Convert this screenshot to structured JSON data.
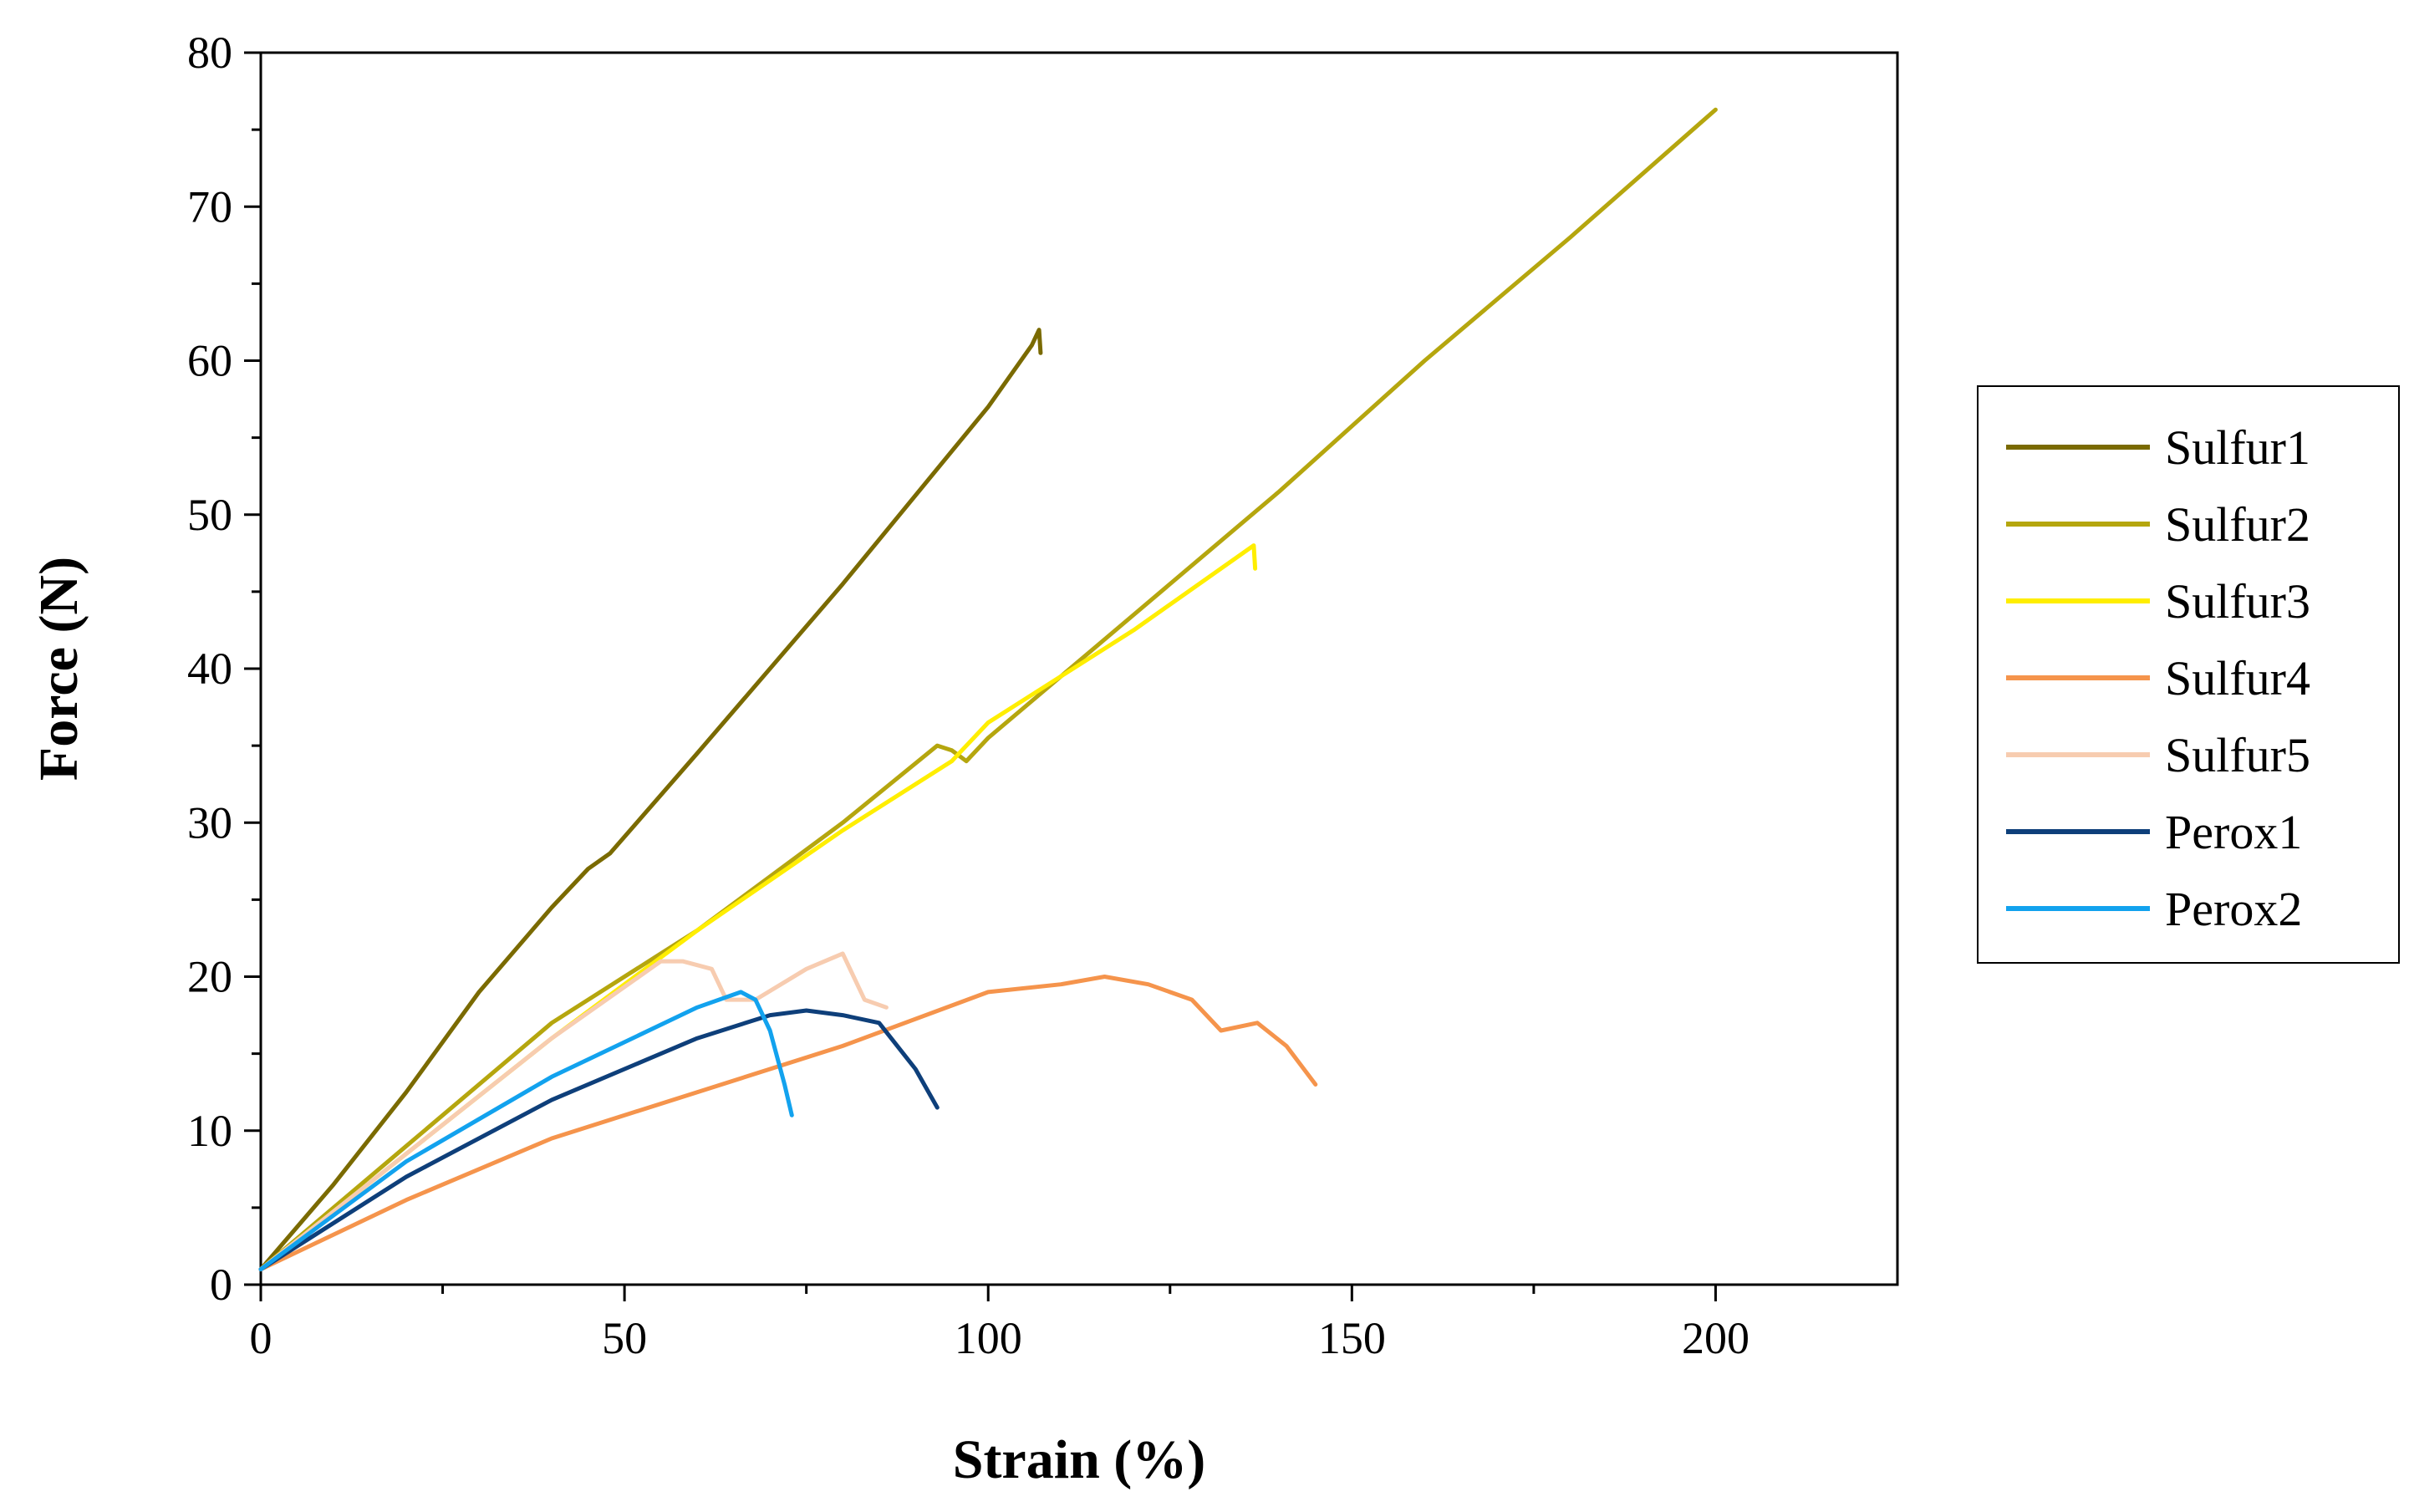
{
  "chart_data": {
    "type": "line",
    "title": "",
    "xlabel": "Strain (%)",
    "ylabel": "Force (N)",
    "xlim": [
      0,
      225
    ],
    "ylim": [
      0,
      80
    ],
    "xticks": [
      0,
      50,
      100,
      150,
      200
    ],
    "yticks": [
      0,
      10,
      20,
      30,
      40,
      50,
      60,
      70,
      80
    ],
    "legend_position": "right",
    "series": [
      {
        "name": "Sulfur1",
        "color": "#7a6a00",
        "x": [
          0,
          10,
          20,
          30,
          40,
          45,
          48,
          60,
          80,
          100,
          106,
          107,
          107.2
        ],
        "y": [
          1,
          6.5,
          12.5,
          19,
          24.5,
          27,
          28,
          34.5,
          45.5,
          57,
          61,
          62,
          60.5
        ]
      },
      {
        "name": "Sulfur2",
        "color": "#b5a60e",
        "x": [
          0,
          20,
          40,
          60,
          80,
          93,
          95,
          97,
          100,
          120,
          140,
          160,
          180,
          200
        ],
        "y": [
          1,
          9,
          17,
          23,
          30,
          35,
          34.7,
          34,
          35.5,
          43.5,
          51.5,
          60,
          68,
          76.3
        ]
      },
      {
        "name": "Sulfur3",
        "color": "#ffee00",
        "x": [
          0,
          20,
          40,
          60,
          80,
          95,
          100,
          120,
          135,
          136.5,
          136.7
        ],
        "y": [
          1,
          8.5,
          16,
          23,
          29.5,
          34,
          36.5,
          42.5,
          47.5,
          48,
          46.5
        ]
      },
      {
        "name": "Sulfur4",
        "color": "#f5944c",
        "x": [
          0,
          20,
          40,
          60,
          80,
          100,
          110,
          116,
          122,
          128,
          132,
          137,
          141,
          145
        ],
        "y": [
          1,
          5.5,
          9.5,
          12.5,
          15.5,
          19,
          19.5,
          20,
          19.5,
          18.5,
          16.5,
          17,
          15.5,
          13
        ]
      },
      {
        "name": "Sulfur5",
        "color": "#f7ccb0",
        "x": [
          0,
          20,
          40,
          55,
          58,
          62,
          64,
          68,
          75,
          80,
          83,
          86
        ],
        "y": [
          1,
          8.5,
          16,
          21,
          21,
          20.5,
          18.5,
          18.5,
          20.5,
          21.5,
          18.5,
          18
        ]
      },
      {
        "name": "Perox1",
        "color": "#0e3f7a",
        "x": [
          0,
          20,
          40,
          60,
          70,
          75,
          80,
          85,
          90,
          93
        ],
        "y": [
          1,
          7,
          12,
          16,
          17.5,
          17.8,
          17.5,
          17,
          14,
          11.5
        ]
      },
      {
        "name": "Perox2",
        "color": "#12a2ee",
        "x": [
          0,
          20,
          40,
          60,
          66,
          68,
          70,
          72,
          73
        ],
        "y": [
          1,
          8,
          13.5,
          18,
          19,
          18.5,
          16.5,
          13,
          11
        ]
      }
    ]
  }
}
